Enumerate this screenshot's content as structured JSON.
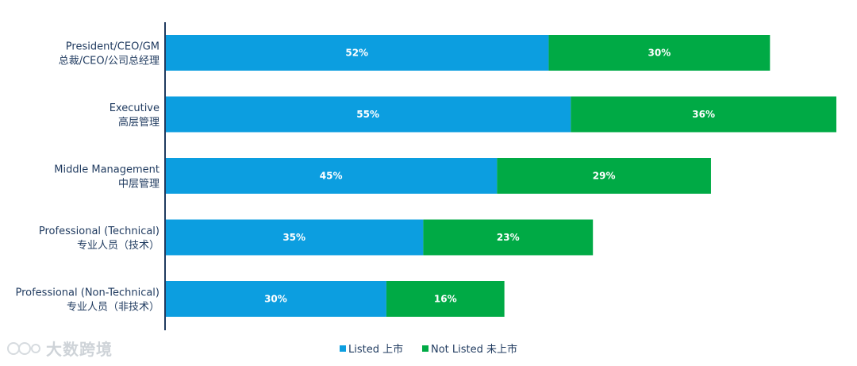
{
  "chart_data": {
    "type": "bar",
    "orientation": "horizontal",
    "stacked": true,
    "categories": [
      [
        "President/CEO/GM",
        "总裁/CEO/公司总经理"
      ],
      [
        "Executive",
        "高层管理"
      ],
      [
        "Middle Management",
        "中层管理"
      ],
      [
        "Professional (Technical)",
        "专业人员（技术）"
      ],
      [
        "Professional (Non-Technical)",
        "专业人员（非技术）"
      ]
    ],
    "series": [
      {
        "name": "Listed 上市",
        "color": "#0c9ee0",
        "values": [
          52,
          55,
          45,
          35,
          30
        ],
        "labels": [
          "52%",
          "55%",
          "45%",
          "35%",
          "30%"
        ]
      },
      {
        "name": "Not Listed 未上市",
        "color": "#00aa45",
        "values": [
          30,
          36,
          29,
          23,
          16
        ],
        "labels": [
          "30%",
          "36%",
          "29%",
          "23%",
          "16%"
        ]
      }
    ],
    "xlim": [
      0,
      91
    ],
    "grid": false,
    "legend": "bottom-center",
    "title": "",
    "xlabel": "",
    "ylabel": ""
  },
  "watermark": {
    "text": "大数跨境"
  },
  "colors": {
    "axis": "#1f3a5f",
    "text": "#1f3a5f"
  }
}
